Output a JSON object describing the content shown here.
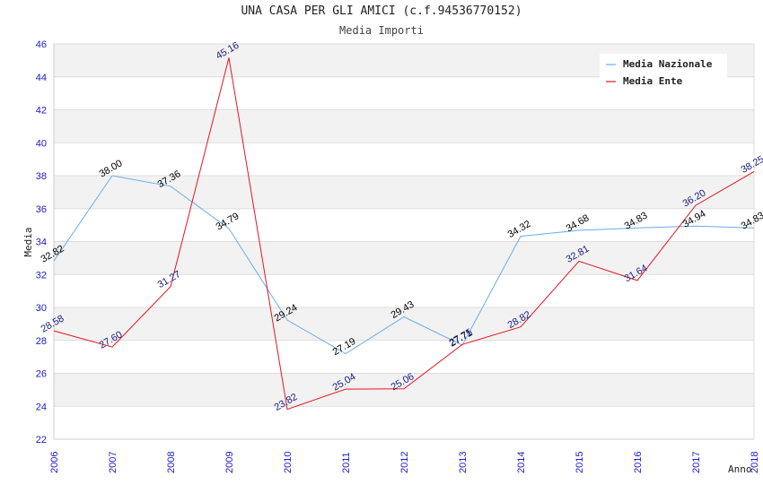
{
  "title": "UNA CASA PER GLI AMICI (c.f.94536770152)",
  "subtitle": "Media Importi",
  "chart_data": {
    "type": "line",
    "x": [
      "2006",
      "2007",
      "2008",
      "2009",
      "2010",
      "2011",
      "2012",
      "2013",
      "2014",
      "2015",
      "2016",
      "2017",
      "2018"
    ],
    "xlabel": "Anno",
    "ylabel": "Media",
    "ylim": [
      22,
      46
    ],
    "yticks": [
      22,
      24,
      26,
      28,
      30,
      32,
      34,
      36,
      38,
      40,
      42,
      44,
      46
    ],
    "grid": true,
    "legend_position": "top-right",
    "series": [
      {
        "name": "Media Nazionale",
        "color": "#6aaee8",
        "label_color": "#000000",
        "values": [
          32.82,
          38.0,
          37.36,
          34.79,
          29.24,
          27.19,
          29.43,
          27.71,
          34.32,
          34.68,
          34.83,
          34.94,
          34.83
        ],
        "labels": [
          "32.82",
          "38.00",
          "37.36",
          "34.79",
          "29.24",
          "27.19",
          "29.43",
          "27.71",
          "34.32",
          "34.68",
          "34.83",
          "34.94",
          "34.83"
        ]
      },
      {
        "name": "Media Ente",
        "color": "#e8141e",
        "label_color": "#1a1a80",
        "values": [
          28.58,
          27.6,
          31.27,
          45.16,
          23.82,
          25.04,
          25.06,
          27.75,
          28.82,
          32.81,
          31.64,
          36.2,
          38.25
        ],
        "labels": [
          "28.58",
          "27.60",
          "31.27",
          "45.16",
          "23.82",
          "25.04",
          "25.06",
          "27.75",
          "28.82",
          "32.81",
          "31.64",
          "36.20",
          "38.25"
        ]
      }
    ]
  }
}
